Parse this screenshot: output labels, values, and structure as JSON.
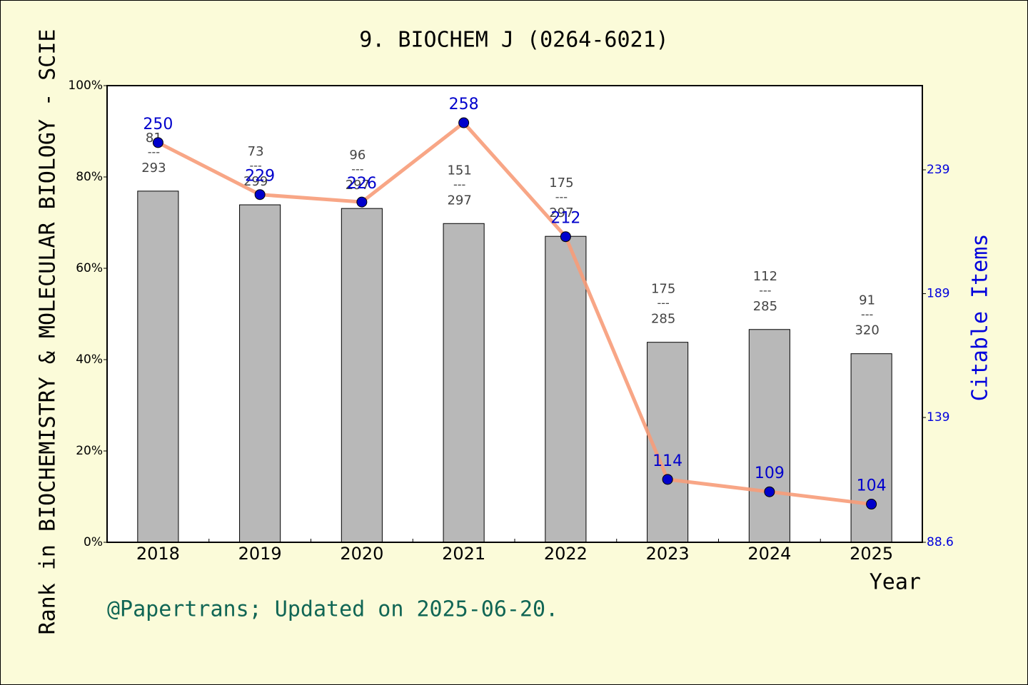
{
  "chart_data": {
    "type": "bar",
    "title": "9. BIOCHEM J (0264-6021)",
    "ylabel": "Rank in BIOCHEMISTRY & MOLECULAR BIOLOGY - SCIE",
    "y2label": "Citable Items",
    "xlabel": "Year",
    "footer": "@Papertrans; Updated on 2025-06-20.",
    "categories": [
      "2018",
      "2019",
      "2020",
      "2021",
      "2022",
      "2023",
      "2024",
      "2025"
    ],
    "series": [
      {
        "type": "bar",
        "color": "#b8b8b8",
        "values": [
          76.9,
          73.9,
          73.1,
          69.8,
          67.0,
          43.8,
          46.6,
          41.3
        ]
      },
      {
        "type": "line",
        "axis": "y2",
        "color": "#f79c79",
        "marker_color": "#0000cc",
        "label_color": "#0000cc",
        "values": [
          250,
          229,
          226,
          258,
          212,
          114,
          109,
          104
        ]
      }
    ],
    "rank_labels": {
      "ranks": [
        81,
        73,
        96,
        151,
        175,
        175,
        112,
        91
      ],
      "separator": "---",
      "totals": [
        293,
        299,
        297,
        297,
        297,
        285,
        285,
        320
      ]
    },
    "ylim": [
      0,
      100
    ],
    "yticks": [
      {
        "value": 0,
        "label": "0%"
      },
      {
        "value": 20,
        "label": "20%"
      },
      {
        "value": 40,
        "label": "40%"
      },
      {
        "value": 60,
        "label": "60%"
      },
      {
        "value": 80,
        "label": "80%"
      },
      {
        "value": 100,
        "label": "100%"
      }
    ],
    "y2lim": [
      88.6,
      273
    ],
    "y2ticks": [
      88.6,
      139,
      189,
      239
    ]
  }
}
